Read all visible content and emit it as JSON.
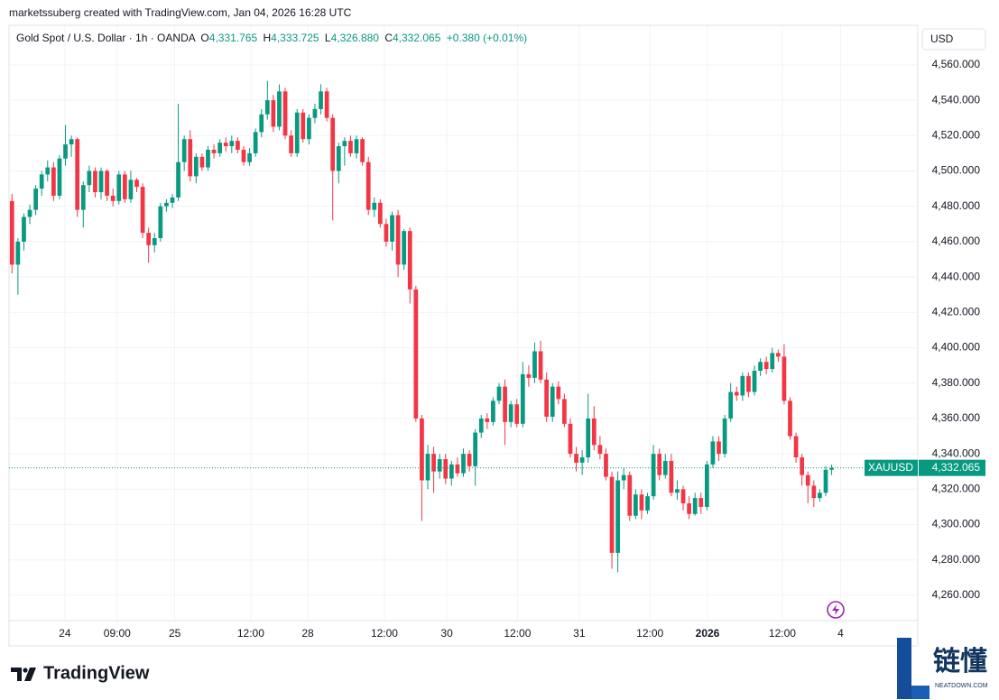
{
  "header": {
    "credit": "marketssuberg created with TradingView.com, Jan 04, 2026 16:28 UTC",
    "symbol": "Gold Spot / U.S. Dollar · 1h · OANDA",
    "o_label": "O",
    "o": "4,331.765",
    "h_label": "H",
    "h": "4,333.725",
    "l_label": "L",
    "l": "4,326.880",
    "c_label": "C",
    "c": "4,332.065",
    "change": "+0.380 (+0.01%)",
    "currency": "USD"
  },
  "footer": {
    "brand": "TradingView",
    "watermark": "链懂",
    "watermark_sub": "NEATDOWN.COM"
  },
  "chart_data": {
    "type": "candlestick",
    "up_color": "#089981",
    "down_color": "#f23645",
    "grid": true,
    "ylim": [
      4247.2,
      4582.4
    ],
    "yticks": [
      {
        "value": 4260,
        "label": "4,260.000"
      },
      {
        "value": 4280,
        "label": "4,280.000"
      },
      {
        "value": 4300,
        "label": "4,300.000"
      },
      {
        "value": 4320,
        "label": "4,320.000"
      },
      {
        "value": 4340,
        "label": "4,340.000"
      },
      {
        "value": 4360,
        "label": "4,360.000"
      },
      {
        "value": 4380,
        "label": "4,380.000"
      },
      {
        "value": 4400,
        "label": "4,400.000"
      },
      {
        "value": 4420,
        "label": "4,420.000"
      },
      {
        "value": 4440,
        "label": "4,440.000"
      },
      {
        "value": 4460,
        "label": "4,460.000"
      },
      {
        "value": 4480,
        "label": "4,480.000"
      },
      {
        "value": 4500,
        "label": "4,500.000"
      },
      {
        "value": 4520,
        "label": "4,520.000"
      },
      {
        "value": 4540,
        "label": "4,540.000"
      },
      {
        "value": 4560,
        "label": "4,560.000"
      }
    ],
    "xlim": [
      -0.5,
      152.5
    ],
    "xticks": [
      {
        "value": 8.9,
        "label": "24"
      },
      {
        "value": 17.7,
        "label": "09:00"
      },
      {
        "value": 27.4,
        "label": "25"
      },
      {
        "value": 40.2,
        "label": "12:00"
      },
      {
        "value": 49.8,
        "label": "28"
      },
      {
        "value": 62.7,
        "label": "12:00"
      },
      {
        "value": 73.2,
        "label": "30"
      },
      {
        "value": 85.1,
        "label": "12:00"
      },
      {
        "value": 95.5,
        "label": "31"
      },
      {
        "value": 107.4,
        "label": "12:00"
      },
      {
        "value": 117.1,
        "label": "2026"
      },
      {
        "value": 129.7,
        "label": "12:00"
      },
      {
        "value": 139.5,
        "label": "4"
      }
    ],
    "last_price": {
      "value": 4332.065,
      "label": "4,332.065"
    },
    "symbol_tag": "XAUUSD",
    "ohlc": [
      [
        4483,
        4487,
        4442,
        4447
      ],
      [
        4447,
        4462,
        4430,
        4460
      ],
      [
        4460,
        4476,
        4455,
        4474
      ],
      [
        4474,
        4481,
        4470,
        4478
      ],
      [
        4478,
        4492,
        4475,
        4490
      ],
      [
        4490,
        4500,
        4486,
        4498
      ],
      [
        4498,
        4506,
        4494,
        4502
      ],
      [
        4502,
        4505,
        4483,
        4486
      ],
      [
        4486,
        4509,
        4484,
        4507
      ],
      [
        4507,
        4526,
        4503,
        4515
      ],
      [
        4515,
        4520,
        4508,
        4518
      ],
      [
        4518,
        4519,
        4474,
        4478
      ],
      [
        4478,
        4494,
        4468,
        4492
      ],
      [
        4492,
        4503,
        4488,
        4500
      ],
      [
        4500,
        4502,
        4485,
        4488
      ],
      [
        4488,
        4502,
        4484,
        4500
      ],
      [
        4500,
        4501,
        4483,
        4486
      ],
      [
        4486,
        4490,
        4480,
        4483
      ],
      [
        4483,
        4500,
        4481,
        4498
      ],
      [
        4498,
        4500,
        4482,
        4484
      ],
      [
        4484,
        4500,
        4482,
        4495
      ],
      [
        4495,
        4496,
        4488,
        4491
      ],
      [
        4491,
        4493,
        4462,
        4465
      ],
      [
        4465,
        4468,
        4448,
        4458
      ],
      [
        4458,
        4465,
        4454,
        4462
      ],
      [
        4462,
        4482,
        4460,
        4480
      ],
      [
        4480,
        4484,
        4477,
        4482
      ],
      [
        4482,
        4487,
        4479,
        4485
      ],
      [
        4485,
        4538,
        4483,
        4505
      ],
      [
        4505,
        4520,
        4500,
        4518
      ],
      [
        4518,
        4523,
        4494,
        4497
      ],
      [
        4497,
        4510,
        4493,
        4508
      ],
      [
        4508,
        4510,
        4500,
        4502
      ],
      [
        4502,
        4514,
        4500,
        4512
      ],
      [
        4512,
        4515,
        4507,
        4510
      ],
      [
        4510,
        4518,
        4508,
        4516
      ],
      [
        4516,
        4519,
        4511,
        4514
      ],
      [
        4514,
        4520,
        4510,
        4517
      ],
      [
        4517,
        4519,
        4510,
        4512
      ],
      [
        4512,
        4514,
        4503,
        4505
      ],
      [
        4505,
        4513,
        4503,
        4510
      ],
      [
        4510,
        4524,
        4508,
        4522
      ],
      [
        4522,
        4535,
        4519,
        4532
      ],
      [
        4532,
        4551,
        4529,
        4540
      ],
      [
        4540,
        4543,
        4522,
        4525
      ],
      [
        4525,
        4549,
        4523,
        4545
      ],
      [
        4545,
        4547,
        4518,
        4520
      ],
      [
        4520,
        4523,
        4508,
        4510
      ],
      [
        4510,
        4535,
        4508,
        4533
      ],
      [
        4533,
        4535,
        4516,
        4518
      ],
      [
        4518,
        4532,
        4515,
        4530
      ],
      [
        4530,
        4538,
        4527,
        4535
      ],
      [
        4535,
        4549,
        4532,
        4545
      ],
      [
        4545,
        4547,
        4528,
        4530
      ],
      [
        4530,
        4532,
        4472,
        4500
      ],
      [
        4500,
        4516,
        4493,
        4514
      ],
      [
        4514,
        4519,
        4503,
        4517
      ],
      [
        4517,
        4520,
        4508,
        4510
      ],
      [
        4510,
        4520,
        4507,
        4518
      ],
      [
        4518,
        4519,
        4503,
        4505
      ],
      [
        4505,
        4508,
        4475,
        4478
      ],
      [
        4478,
        4485,
        4474,
        4482
      ],
      [
        4482,
        4484,
        4468,
        4470
      ],
      [
        4470,
        4473,
        4457,
        4460
      ],
      [
        4460,
        4477,
        4455,
        4475
      ],
      [
        4475,
        4478,
        4440,
        4447
      ],
      [
        4447,
        4467,
        4444,
        4466
      ],
      [
        4466,
        4468,
        4425,
        4433
      ],
      [
        4433,
        4435,
        4358,
        4360
      ],
      [
        4360,
        4362,
        4302,
        4325
      ],
      [
        4325,
        4345,
        4320,
        4340
      ],
      [
        4340,
        4344,
        4318,
        4330
      ],
      [
        4330,
        4340,
        4326,
        4337
      ],
      [
        4337,
        4340,
        4323,
        4326
      ],
      [
        4326,
        4336,
        4322,
        4334
      ],
      [
        4334,
        4338,
        4327,
        4329
      ],
      [
        4329,
        4343,
        4327,
        4340
      ],
      [
        4340,
        4342,
        4330,
        4333
      ],
      [
        4333,
        4354,
        4322,
        4352
      ],
      [
        4352,
        4362,
        4349,
        4360
      ],
      [
        4360,
        4363,
        4354,
        4358
      ],
      [
        4358,
        4372,
        4356,
        4370
      ],
      [
        4370,
        4380,
        4368,
        4378
      ],
      [
        4378,
        4382,
        4345,
        4358
      ],
      [
        4358,
        4370,
        4355,
        4368
      ],
      [
        4368,
        4371,
        4355,
        4357
      ],
      [
        4357,
        4392,
        4355,
        4385
      ],
      [
        4385,
        4390,
        4378,
        4383
      ],
      [
        4383,
        4403,
        4380,
        4398
      ],
      [
        4398,
        4404,
        4380,
        4382
      ],
      [
        4382,
        4386,
        4358,
        4361
      ],
      [
        4361,
        4380,
        4358,
        4378
      ],
      [
        4378,
        4381,
        4368,
        4371
      ],
      [
        4371,
        4374,
        4355,
        4357
      ],
      [
        4357,
        4360,
        4338,
        4340
      ],
      [
        4340,
        4344,
        4330,
        4335
      ],
      [
        4335,
        4342,
        4328,
        4338
      ],
      [
        4338,
        4374,
        4335,
        4360
      ],
      [
        4360,
        4367,
        4342,
        4345
      ],
      [
        4345,
        4350,
        4337,
        4340
      ],
      [
        4340,
        4343,
        4325,
        4327
      ],
      [
        4327,
        4330,
        4275,
        4284
      ],
      [
        4284,
        4330,
        4273,
        4325
      ],
      [
        4325,
        4332,
        4320,
        4328
      ],
      [
        4328,
        4330,
        4302,
        4305
      ],
      [
        4305,
        4320,
        4303,
        4317
      ],
      [
        4317,
        4320,
        4303,
        4308
      ],
      [
        4308,
        4318,
        4306,
        4316
      ],
      [
        4316,
        4345,
        4314,
        4340
      ],
      [
        4340,
        4343,
        4325,
        4328
      ],
      [
        4328,
        4340,
        4326,
        4336
      ],
      [
        4336,
        4340,
        4316,
        4318
      ],
      [
        4318,
        4325,
        4314,
        4320
      ],
      [
        4320,
        4322,
        4308,
        4312
      ],
      [
        4312,
        4316,
        4303,
        4306
      ],
      [
        4306,
        4318,
        4305,
        4315
      ],
      [
        4315,
        4318,
        4306,
        4310
      ],
      [
        4310,
        4336,
        4308,
        4334
      ],
      [
        4334,
        4350,
        4332,
        4347
      ],
      [
        4347,
        4350,
        4336,
        4340
      ],
      [
        4340,
        4362,
        4338,
        4360
      ],
      [
        4360,
        4380,
        4358,
        4375
      ],
      [
        4375,
        4378,
        4370,
        4373
      ],
      [
        4373,
        4386,
        4370,
        4384
      ],
      [
        4384,
        4386,
        4372,
        4375
      ],
      [
        4375,
        4390,
        4373,
        4387
      ],
      [
        4387,
        4394,
        4384,
        4392
      ],
      [
        4392,
        4395,
        4385,
        4388
      ],
      [
        4388,
        4400,
        4386,
        4397
      ],
      [
        4397,
        4399,
        4392,
        4395
      ],
      [
        4395,
        4402,
        4368,
        4370
      ],
      [
        4370,
        4372,
        4348,
        4350
      ],
      [
        4350,
        4352,
        4335,
        4338
      ],
      [
        4338,
        4340,
        4322,
        4328
      ],
      [
        4328,
        4330,
        4312,
        4322
      ],
      [
        4322,
        4325,
        4310,
        4315
      ],
      [
        4315,
        4320,
        4313,
        4318
      ],
      [
        4318,
        4333,
        4316,
        4331
      ],
      [
        4331,
        4334,
        4328,
        4332
      ]
    ]
  }
}
